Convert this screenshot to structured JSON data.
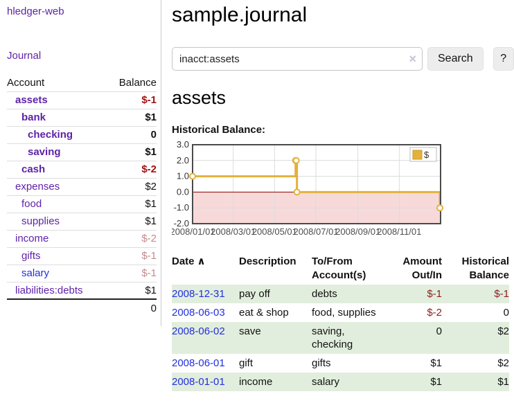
{
  "sidebar": {
    "app_title": "hledger-web",
    "nav": {
      "journal": "Journal"
    },
    "table": {
      "col_account": "Account",
      "col_balance": "Balance"
    },
    "accounts": [
      {
        "name": "assets",
        "balance": "$-1",
        "depth": 1,
        "bold": true,
        "link_color": "purple",
        "balance_class": "neg-strong"
      },
      {
        "name": "bank",
        "balance": "$1",
        "depth": 2,
        "bold": true,
        "link_color": "purple",
        "balance_class": "pos"
      },
      {
        "name": "checking",
        "balance": "0",
        "depth": 3,
        "bold": true,
        "link_color": "purple",
        "balance_class": "pos"
      },
      {
        "name": "saving",
        "balance": "$1",
        "depth": 3,
        "bold": true,
        "link_color": "purple",
        "balance_class": "pos"
      },
      {
        "name": "cash",
        "balance": "$-2",
        "depth": 2,
        "bold": true,
        "link_color": "purple",
        "balance_class": "neg-strong"
      },
      {
        "name": "expenses",
        "balance": "$2",
        "depth": 1,
        "bold": false,
        "link_color": "purple",
        "balance_class": "pos"
      },
      {
        "name": "food",
        "balance": "$1",
        "depth": 2,
        "bold": false,
        "link_color": "purple",
        "balance_class": "pos"
      },
      {
        "name": "supplies",
        "balance": "$1",
        "depth": 2,
        "bold": false,
        "link_color": "purple",
        "balance_class": "pos"
      },
      {
        "name": "income",
        "balance": "$-2",
        "depth": 1,
        "bold": false,
        "link_color": "purple",
        "balance_class": "neg-soft"
      },
      {
        "name": "gifts",
        "balance": "$-1",
        "depth": 2,
        "bold": false,
        "link_color": "purple",
        "balance_class": "neg-soft"
      },
      {
        "name": "salary",
        "balance": "$-1",
        "depth": 2,
        "bold": false,
        "link_color": "blue",
        "balance_class": "neg-soft"
      },
      {
        "name": "liabilities:debts",
        "balance": "$1",
        "depth": 1,
        "bold": false,
        "link_color": "purple",
        "balance_class": "pos"
      }
    ],
    "total": "0"
  },
  "main": {
    "title": "sample.journal",
    "search": {
      "value": "inacct:assets",
      "clear_icon": "×",
      "search_button": "Search",
      "help_button": "?"
    },
    "account_heading": "assets",
    "chart_heading": "Historical Balance:"
  },
  "chart_data": {
    "type": "line",
    "title": "Historical Balance:",
    "step": true,
    "series": [
      {
        "name": "$",
        "points": [
          [
            "2008-01-01",
            1
          ],
          [
            "2008-06-01",
            2
          ],
          [
            "2008-06-02",
            2
          ],
          [
            "2008-06-03",
            0
          ],
          [
            "2008-12-31",
            -1
          ]
        ]
      }
    ],
    "x_range": [
      "2008-01-01",
      "2009-01-01"
    ],
    "x_ticks": [
      "2008/01/01",
      "2008/03/01",
      "2008/05/01",
      "2008/07/01",
      "2008/09/01",
      "2008/11/01"
    ],
    "y_ticks": [
      3.0,
      2.0,
      1.0,
      0.0,
      -1.0,
      -2.0
    ],
    "ylim": [
      -2,
      3
    ],
    "grid": true,
    "legend": "$",
    "legend_position": "top-right",
    "line_color": "#e3b23c",
    "marker_fill": "#ffffff",
    "zero_line_color": "#8b0000",
    "negative_region_color": "#f8d9d9"
  },
  "register": {
    "columns": [
      "Date",
      "Description",
      "To/From Account(s)",
      "Amount Out/In",
      "Historical Balance"
    ],
    "sort_icon": "∧",
    "rows": [
      {
        "date": "2008-12-31",
        "description": "pay off",
        "accounts": "debts",
        "amount": "$-1",
        "balance": "$-1",
        "amount_neg": true,
        "balance_neg": true
      },
      {
        "date": "2008-06-03",
        "description": "eat & shop",
        "accounts": "food, supplies",
        "amount": "$-2",
        "balance": "0",
        "amount_neg": true,
        "balance_neg": false
      },
      {
        "date": "2008-06-02",
        "description": "save",
        "accounts": "saving, checking",
        "amount": "0",
        "balance": "$2",
        "amount_neg": false,
        "balance_neg": false
      },
      {
        "date": "2008-06-01",
        "description": "gift",
        "accounts": "gifts",
        "amount": "$1",
        "balance": "$2",
        "amount_neg": false,
        "balance_neg": false
      },
      {
        "date": "2008-01-01",
        "description": "income",
        "accounts": "salary",
        "amount": "$1",
        "balance": "$1",
        "amount_neg": false,
        "balance_neg": false
      }
    ]
  }
}
